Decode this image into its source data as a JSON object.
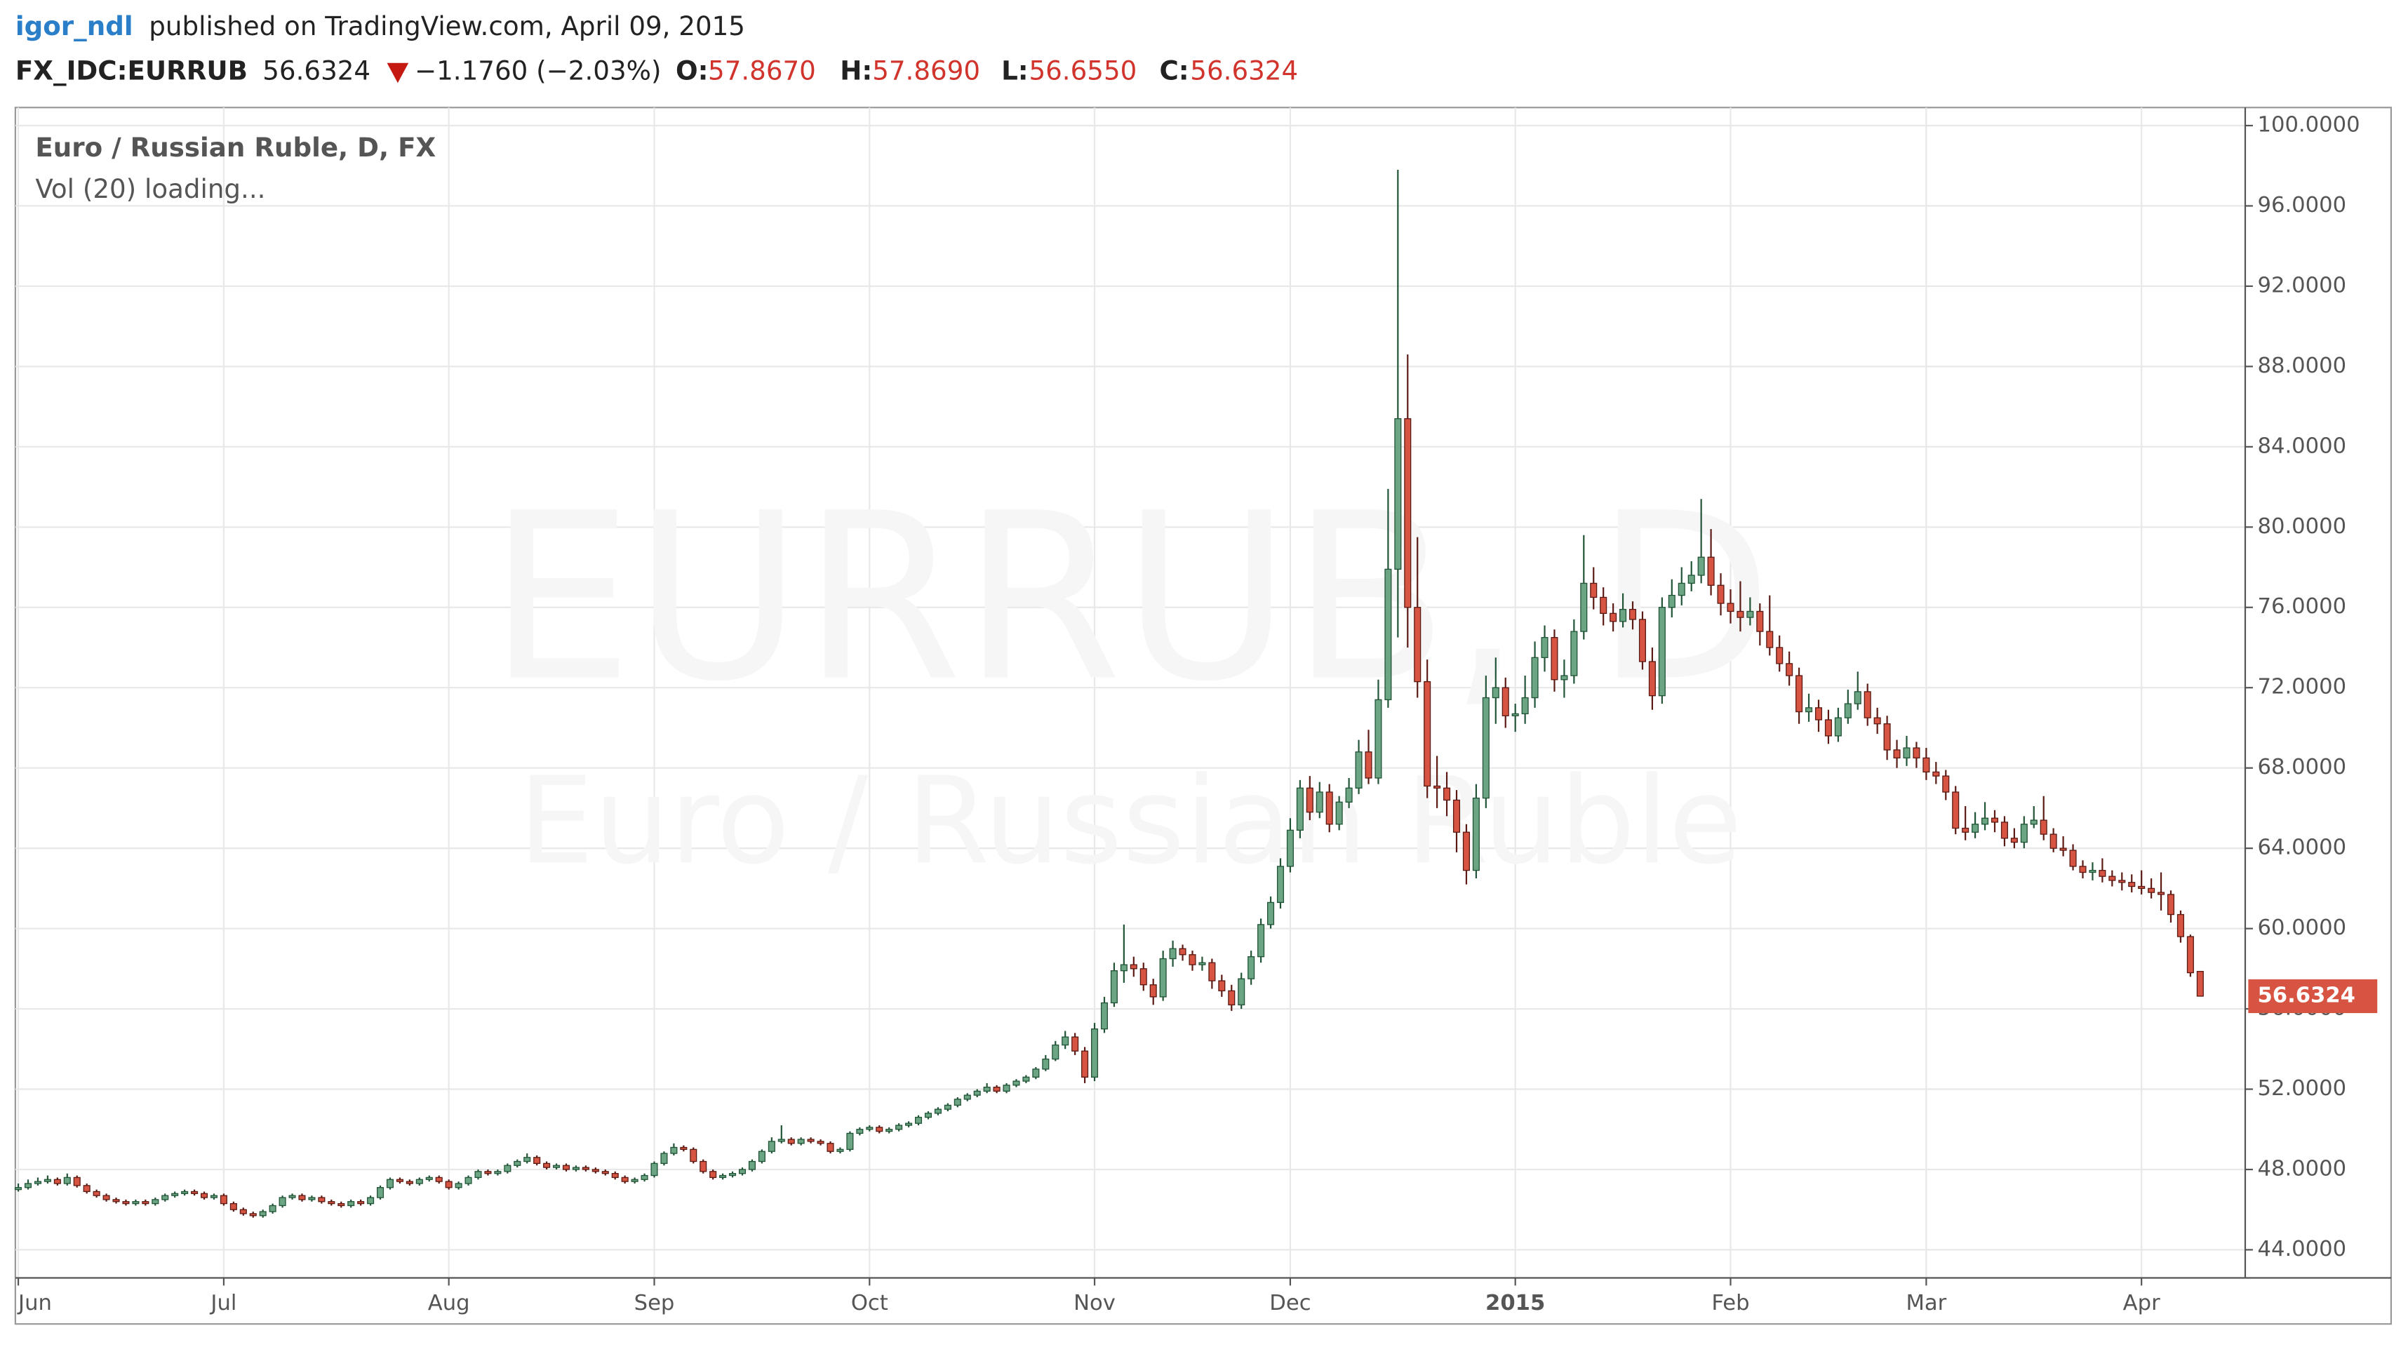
{
  "header": {
    "user": "igor_ndl",
    "published": "published on TradingView.com, April 09, 2015"
  },
  "symbol": {
    "ticker": "FX_IDC:EURRUB",
    "last": "56.6324",
    "change": "−1.1760 (−2.03%)",
    "open_label": "O:",
    "open": "57.8670",
    "high_label": "H:",
    "high": "57.8690",
    "low_label": "L:",
    "low": "56.6550",
    "close_label": "C:",
    "close": "56.6324"
  },
  "chart_data": {
    "type": "candlestick",
    "legend_title": "Euro / Russian Ruble, D, FX",
    "legend_sub": "Vol (20) loading...",
    "watermark": "EURRUB, D",
    "watermark_sub": "Euro / Russian Ruble",
    "up_color": "#6ba583",
    "down_color": "#d75442",
    "grid": true,
    "xlim": [
      -0.3,
      227.6
    ],
    "ylim": [
      42.6,
      100.9
    ],
    "xticks": [
      {
        "value": 0,
        "label": "Jun"
      },
      {
        "value": 21,
        "label": "Jul"
      },
      {
        "value": 44,
        "label": "Aug"
      },
      {
        "value": 65,
        "label": "Sep"
      },
      {
        "value": 87,
        "label": "Oct"
      },
      {
        "value": 110,
        "label": "Nov"
      },
      {
        "value": 130,
        "label": "Dec"
      },
      {
        "value": 153,
        "label": "2015"
      },
      {
        "value": 175,
        "label": "Feb"
      },
      {
        "value": 195,
        "label": "Mar"
      },
      {
        "value": 217,
        "label": "Apr"
      }
    ],
    "yticks": [
      {
        "value": 44,
        "label": "44.0000"
      },
      {
        "value": 48,
        "label": "48.0000"
      },
      {
        "value": 52,
        "label": "52.0000"
      },
      {
        "value": 56,
        "label": "56.0000"
      },
      {
        "value": 60,
        "label": "60.0000"
      },
      {
        "value": 64,
        "label": "64.0000"
      },
      {
        "value": 68,
        "label": "68.0000"
      },
      {
        "value": 72,
        "label": "72.0000"
      },
      {
        "value": 76,
        "label": "76.0000"
      },
      {
        "value": 80,
        "label": "80.0000"
      },
      {
        "value": 84,
        "label": "84.0000"
      },
      {
        "value": 88,
        "label": "88.0000"
      },
      {
        "value": 92,
        "label": "92.0000"
      },
      {
        "value": 96,
        "label": "96.0000"
      },
      {
        "value": 100,
        "label": "100.0000"
      }
    ],
    "ohlc": [
      [
        47.0,
        47.3,
        46.9,
        47.1
      ],
      [
        47.1,
        47.5,
        47.0,
        47.3
      ],
      [
        47.3,
        47.6,
        47.2,
        47.4
      ],
      [
        47.4,
        47.7,
        47.3,
        47.5
      ],
      [
        47.5,
        47.6,
        47.2,
        47.3
      ],
      [
        47.3,
        47.8,
        47.2,
        47.6
      ],
      [
        47.6,
        47.7,
        47.1,
        47.2
      ],
      [
        47.2,
        47.3,
        46.8,
        46.9
      ],
      [
        46.9,
        47.0,
        46.6,
        46.7
      ],
      [
        46.7,
        46.8,
        46.4,
        46.5
      ],
      [
        46.5,
        46.6,
        46.3,
        46.4
      ],
      [
        46.4,
        46.5,
        46.2,
        46.3
      ],
      [
        46.3,
        46.5,
        46.2,
        46.4
      ],
      [
        46.4,
        46.5,
        46.2,
        46.3
      ],
      [
        46.3,
        46.6,
        46.2,
        46.5
      ],
      [
        46.5,
        46.8,
        46.4,
        46.7
      ],
      [
        46.7,
        46.9,
        46.6,
        46.8
      ],
      [
        46.8,
        47.0,
        46.7,
        46.9
      ],
      [
        46.9,
        47.0,
        46.7,
        46.8
      ],
      [
        46.8,
        46.9,
        46.5,
        46.6
      ],
      [
        46.6,
        46.8,
        46.5,
        46.7
      ],
      [
        46.7,
        46.8,
        46.2,
        46.3
      ],
      [
        46.3,
        46.4,
        45.9,
        46.0
      ],
      [
        46.0,
        46.1,
        45.7,
        45.8
      ],
      [
        45.8,
        45.9,
        45.6,
        45.7
      ],
      [
        45.7,
        46.0,
        45.6,
        45.9
      ],
      [
        45.9,
        46.3,
        45.8,
        46.2
      ],
      [
        46.2,
        46.7,
        46.1,
        46.6
      ],
      [
        46.6,
        46.8,
        46.5,
        46.7
      ],
      [
        46.7,
        46.8,
        46.4,
        46.5
      ],
      [
        46.5,
        46.7,
        46.4,
        46.6
      ],
      [
        46.6,
        46.7,
        46.3,
        46.4
      ],
      [
        46.4,
        46.5,
        46.2,
        46.3
      ],
      [
        46.3,
        46.4,
        46.1,
        46.2
      ],
      [
        46.2,
        46.5,
        46.1,
        46.4
      ],
      [
        46.4,
        46.5,
        46.2,
        46.3
      ],
      [
        46.3,
        46.7,
        46.2,
        46.6
      ],
      [
        46.6,
        47.2,
        46.5,
        47.1
      ],
      [
        47.1,
        47.6,
        47.0,
        47.5
      ],
      [
        47.5,
        47.6,
        47.3,
        47.4
      ],
      [
        47.4,
        47.5,
        47.2,
        47.3
      ],
      [
        47.3,
        47.6,
        47.2,
        47.5
      ],
      [
        47.5,
        47.7,
        47.4,
        47.6
      ],
      [
        47.6,
        47.7,
        47.3,
        47.4
      ],
      [
        47.4,
        47.5,
        47.0,
        47.1
      ],
      [
        47.1,
        47.4,
        47.0,
        47.3
      ],
      [
        47.3,
        47.7,
        47.2,
        47.6
      ],
      [
        47.6,
        48.0,
        47.5,
        47.9
      ],
      [
        47.9,
        48.0,
        47.7,
        47.8
      ],
      [
        47.8,
        48.0,
        47.7,
        47.9
      ],
      [
        47.9,
        48.3,
        47.8,
        48.2
      ],
      [
        48.2,
        48.5,
        48.1,
        48.4
      ],
      [
        48.4,
        48.8,
        48.3,
        48.6
      ],
      [
        48.6,
        48.7,
        48.2,
        48.3
      ],
      [
        48.3,
        48.4,
        48.0,
        48.1
      ],
      [
        48.1,
        48.3,
        48.0,
        48.2
      ],
      [
        48.2,
        48.3,
        47.9,
        48.0
      ],
      [
        48.0,
        48.2,
        47.9,
        48.1
      ],
      [
        48.1,
        48.2,
        47.9,
        48.0
      ],
      [
        48.0,
        48.1,
        47.8,
        47.9
      ],
      [
        47.9,
        48.0,
        47.7,
        47.8
      ],
      [
        47.8,
        47.9,
        47.5,
        47.6
      ],
      [
        47.6,
        47.7,
        47.3,
        47.4
      ],
      [
        47.4,
        47.6,
        47.3,
        47.5
      ],
      [
        47.5,
        47.8,
        47.4,
        47.7
      ],
      [
        47.7,
        48.4,
        47.6,
        48.3
      ],
      [
        48.3,
        48.9,
        48.2,
        48.8
      ],
      [
        48.8,
        49.3,
        48.7,
        49.1
      ],
      [
        49.1,
        49.2,
        48.9,
        49.0
      ],
      [
        49.0,
        49.1,
        48.3,
        48.4
      ],
      [
        48.4,
        48.5,
        47.8,
        47.9
      ],
      [
        47.9,
        48.0,
        47.5,
        47.6
      ],
      [
        47.6,
        47.8,
        47.5,
        47.7
      ],
      [
        47.7,
        47.9,
        47.6,
        47.8
      ],
      [
        47.8,
        48.1,
        47.7,
        48.0
      ],
      [
        48.0,
        48.5,
        47.9,
        48.4
      ],
      [
        48.4,
        49.0,
        48.3,
        48.9
      ],
      [
        48.9,
        49.6,
        48.8,
        49.4
      ],
      [
        49.4,
        50.2,
        49.3,
        49.5
      ],
      [
        49.5,
        49.6,
        49.2,
        49.3
      ],
      [
        49.3,
        49.6,
        49.2,
        49.5
      ],
      [
        49.5,
        49.6,
        49.3,
        49.4
      ],
      [
        49.4,
        49.5,
        49.2,
        49.3
      ],
      [
        49.3,
        49.4,
        48.8,
        48.9
      ],
      [
        48.9,
        49.1,
        48.8,
        49.0
      ],
      [
        49.0,
        49.9,
        48.9,
        49.8
      ],
      [
        49.8,
        50.1,
        49.7,
        50.0
      ],
      [
        50.0,
        50.2,
        49.9,
        50.1
      ],
      [
        50.1,
        50.2,
        49.8,
        49.9
      ],
      [
        49.9,
        50.1,
        49.8,
        50.0
      ],
      [
        50.0,
        50.3,
        49.9,
        50.2
      ],
      [
        50.2,
        50.4,
        50.1,
        50.3
      ],
      [
        50.3,
        50.7,
        50.2,
        50.6
      ],
      [
        50.6,
        50.9,
        50.5,
        50.8
      ],
      [
        50.8,
        51.1,
        50.7,
        51.0
      ],
      [
        51.0,
        51.3,
        50.9,
        51.2
      ],
      [
        51.2,
        51.6,
        51.1,
        51.5
      ],
      [
        51.5,
        51.8,
        51.4,
        51.7
      ],
      [
        51.7,
        52.0,
        51.6,
        51.9
      ],
      [
        51.9,
        52.3,
        51.8,
        52.1
      ],
      [
        52.1,
        52.2,
        51.8,
        51.9
      ],
      [
        51.9,
        52.3,
        51.8,
        52.2
      ],
      [
        52.2,
        52.5,
        52.1,
        52.4
      ],
      [
        52.4,
        52.7,
        52.3,
        52.6
      ],
      [
        52.6,
        53.1,
        52.5,
        53.0
      ],
      [
        53.0,
        53.7,
        52.9,
        53.5
      ],
      [
        53.5,
        54.4,
        53.4,
        54.2
      ],
      [
        54.2,
        54.9,
        54.0,
        54.6
      ],
      [
        54.6,
        54.8,
        53.7,
        53.9
      ],
      [
        53.9,
        54.1,
        52.3,
        52.6
      ],
      [
        52.6,
        55.3,
        52.4,
        55.0
      ],
      [
        55.0,
        56.6,
        54.8,
        56.3
      ],
      [
        56.3,
        58.3,
        56.1,
        57.9
      ],
      [
        57.9,
        60.2,
        57.3,
        58.2
      ],
      [
        58.2,
        58.6,
        57.6,
        58.0
      ],
      [
        58.0,
        58.3,
        56.9,
        57.2
      ],
      [
        57.2,
        57.5,
        56.2,
        56.6
      ],
      [
        56.6,
        58.9,
        56.4,
        58.5
      ],
      [
        58.5,
        59.4,
        58.1,
        59.0
      ],
      [
        59.0,
        59.2,
        58.4,
        58.7
      ],
      [
        58.7,
        58.9,
        57.9,
        58.2
      ],
      [
        58.2,
        58.6,
        57.9,
        58.3
      ],
      [
        58.3,
        58.5,
        57.0,
        57.4
      ],
      [
        57.4,
        57.7,
        56.6,
        56.9
      ],
      [
        56.9,
        57.2,
        55.9,
        56.2
      ],
      [
        56.2,
        57.8,
        56.0,
        57.5
      ],
      [
        57.5,
        58.9,
        57.2,
        58.6
      ],
      [
        58.6,
        60.5,
        58.3,
        60.2
      ],
      [
        60.2,
        61.6,
        60.0,
        61.3
      ],
      [
        61.3,
        63.5,
        61.0,
        63.1
      ],
      [
        63.1,
        65.5,
        62.8,
        64.9
      ],
      [
        64.9,
        67.4,
        64.5,
        67.0
      ],
      [
        67.0,
        67.6,
        65.4,
        65.8
      ],
      [
        65.8,
        67.3,
        65.5,
        66.8
      ],
      [
        66.8,
        67.2,
        64.8,
        65.2
      ],
      [
        65.2,
        66.6,
        64.9,
        66.3
      ],
      [
        66.3,
        67.5,
        66.0,
        67.0
      ],
      [
        67.0,
        69.4,
        66.7,
        68.8
      ],
      [
        68.8,
        69.9,
        67.2,
        67.5
      ],
      [
        67.5,
        72.4,
        67.2,
        71.4
      ],
      [
        71.4,
        81.9,
        71.0,
        77.9
      ],
      [
        77.9,
        97.8,
        74.5,
        85.4
      ],
      [
        85.4,
        88.6,
        74.0,
        76.0
      ],
      [
        76.0,
        79.5,
        71.5,
        72.3
      ],
      [
        72.3,
        73.4,
        66.5,
        67.1
      ],
      [
        67.1,
        68.6,
        66.0,
        67.0
      ],
      [
        67.0,
        67.8,
        65.6,
        66.4
      ],
      [
        66.4,
        66.9,
        63.8,
        64.8
      ],
      [
        64.8,
        65.2,
        62.2,
        62.9
      ],
      [
        62.9,
        67.2,
        62.5,
        66.5
      ],
      [
        66.5,
        72.6,
        66.0,
        71.5
      ],
      [
        71.5,
        73.5,
        70.2,
        72.0
      ],
      [
        72.0,
        72.5,
        70.0,
        70.6
      ],
      [
        70.6,
        71.2,
        69.8,
        70.7
      ],
      [
        70.7,
        72.6,
        70.2,
        71.5
      ],
      [
        71.5,
        74.3,
        71.0,
        73.5
      ],
      [
        73.5,
        75.1,
        72.8,
        74.5
      ],
      [
        74.5,
        74.9,
        71.8,
        72.4
      ],
      [
        72.4,
        73.4,
        71.5,
        72.6
      ],
      [
        72.6,
        75.4,
        72.2,
        74.8
      ],
      [
        74.8,
        79.6,
        74.4,
        77.2
      ],
      [
        77.2,
        78.0,
        75.9,
        76.5
      ],
      [
        76.5,
        77.0,
        75.1,
        75.7
      ],
      [
        75.7,
        76.2,
        74.8,
        75.3
      ],
      [
        75.3,
        76.7,
        75.0,
        75.9
      ],
      [
        75.9,
        76.3,
        74.9,
        75.4
      ],
      [
        75.4,
        75.8,
        72.9,
        73.3
      ],
      [
        73.3,
        74.0,
        70.9,
        71.6
      ],
      [
        71.6,
        76.5,
        71.2,
        76.0
      ],
      [
        76.0,
        77.4,
        75.5,
        76.6
      ],
      [
        76.6,
        78.0,
        76.1,
        77.2
      ],
      [
        77.2,
        78.3,
        76.8,
        77.6
      ],
      [
        77.6,
        81.4,
        77.2,
        78.5
      ],
      [
        78.5,
        79.9,
        76.6,
        77.1
      ],
      [
        77.1,
        77.7,
        75.6,
        76.2
      ],
      [
        76.2,
        76.9,
        75.2,
        75.8
      ],
      [
        75.8,
        77.3,
        74.8,
        75.5
      ],
      [
        75.5,
        76.5,
        75.1,
        75.8
      ],
      [
        75.8,
        76.2,
        74.1,
        74.8
      ],
      [
        74.8,
        76.6,
        73.6,
        74.0
      ],
      [
        74.0,
        74.6,
        72.8,
        73.2
      ],
      [
        73.2,
        73.8,
        72.1,
        72.6
      ],
      [
        72.6,
        73.0,
        70.2,
        70.8
      ],
      [
        70.8,
        71.7,
        70.3,
        71.0
      ],
      [
        71.0,
        71.4,
        69.8,
        70.4
      ],
      [
        70.4,
        70.9,
        69.2,
        69.6
      ],
      [
        69.6,
        71.0,
        69.3,
        70.5
      ],
      [
        70.5,
        71.9,
        70.2,
        71.2
      ],
      [
        71.2,
        72.8,
        70.9,
        71.8
      ],
      [
        71.8,
        72.2,
        70.1,
        70.5
      ],
      [
        70.5,
        71.0,
        69.7,
        70.2
      ],
      [
        70.2,
        70.6,
        68.4,
        68.9
      ],
      [
        68.9,
        69.4,
        68.0,
        68.5
      ],
      [
        68.5,
        69.6,
        68.1,
        69.0
      ],
      [
        69.0,
        69.3,
        68.0,
        68.5
      ],
      [
        68.5,
        69.0,
        67.4,
        67.8
      ],
      [
        67.8,
        68.3,
        67.2,
        67.6
      ],
      [
        67.6,
        67.9,
        66.4,
        66.8
      ],
      [
        66.8,
        67.1,
        64.7,
        65.0
      ],
      [
        65.0,
        66.1,
        64.4,
        64.8
      ],
      [
        64.8,
        65.8,
        64.5,
        65.2
      ],
      [
        65.2,
        66.3,
        64.9,
        65.5
      ],
      [
        65.5,
        65.9,
        64.8,
        65.3
      ],
      [
        65.3,
        65.6,
        64.1,
        64.5
      ],
      [
        64.5,
        65.0,
        64.0,
        64.3
      ],
      [
        64.3,
        65.6,
        64.0,
        65.2
      ],
      [
        65.2,
        66.1,
        65.0,
        65.4
      ],
      [
        65.4,
        66.6,
        64.4,
        64.7
      ],
      [
        64.7,
        65.0,
        63.8,
        64.0
      ],
      [
        64.0,
        64.6,
        63.6,
        63.9
      ],
      [
        63.9,
        64.2,
        62.9,
        63.1
      ],
      [
        63.1,
        63.4,
        62.5,
        62.8
      ],
      [
        62.8,
        63.3,
        62.4,
        62.9
      ],
      [
        62.9,
        63.5,
        62.3,
        62.6
      ],
      [
        62.6,
        62.9,
        62.1,
        62.4
      ],
      [
        62.4,
        62.8,
        61.9,
        62.3
      ],
      [
        62.3,
        62.7,
        61.8,
        62.1
      ],
      [
        62.1,
        62.9,
        61.7,
        62.0
      ],
      [
        62.0,
        62.5,
        61.5,
        61.8
      ],
      [
        61.8,
        62.8,
        60.9,
        61.7
      ],
      [
        61.7,
        61.9,
        60.3,
        60.7
      ],
      [
        60.7,
        60.9,
        59.3,
        59.6
      ],
      [
        59.6,
        59.7,
        57.6,
        57.8
      ],
      [
        57.867,
        57.869,
        56.655,
        56.6324
      ]
    ]
  }
}
